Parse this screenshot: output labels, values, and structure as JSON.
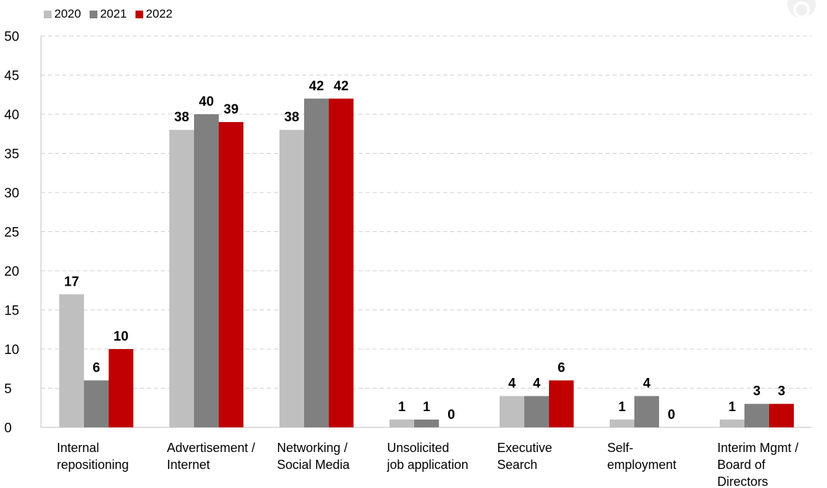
{
  "chart_data": {
    "type": "bar",
    "title": "",
    "xlabel": "",
    "ylabel": "",
    "categories": [
      [
        "Internal",
        "repositioning"
      ],
      [
        "Advertisement /",
        "Internet"
      ],
      [
        "Networking /",
        "Social Media"
      ],
      [
        "Unsolicited",
        "job application"
      ],
      [
        "Executive",
        "Search"
      ],
      [
        "Self-",
        "employment"
      ],
      [
        "Interim Mgmt /",
        "Board of",
        "Directors"
      ]
    ],
    "series": [
      {
        "name": "2020",
        "color": "#bfbfbf",
        "values": [
          17,
          38,
          38,
          1,
          4,
          1,
          1
        ]
      },
      {
        "name": "2021",
        "color": "#808080",
        "values": [
          6,
          40,
          42,
          1,
          4,
          4,
          3
        ]
      },
      {
        "name": "2022",
        "color": "#c00000",
        "values": [
          10,
          39,
          42,
          0,
          6,
          0,
          3
        ]
      }
    ],
    "ylim": [
      0,
      50
    ],
    "yticks": [
      0,
      5,
      10,
      15,
      20,
      25,
      30,
      35,
      40,
      45,
      50
    ],
    "grid": true,
    "legend_position": "top-left"
  }
}
